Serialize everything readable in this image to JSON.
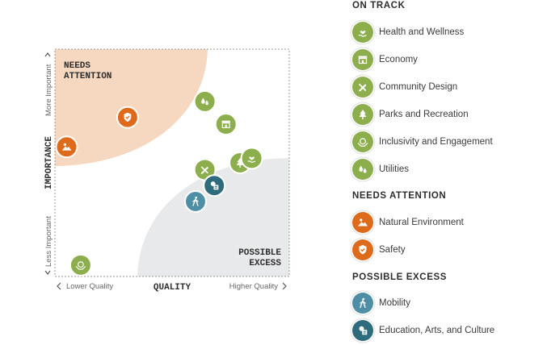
{
  "chart_data": {
    "type": "scatter",
    "title": "",
    "xlabel": "QUALITY",
    "ylabel": "IMPORTANCE",
    "x_low_label": "Lower Quality",
    "x_high_label": "Higher Quality",
    "y_low_label": "Less Important",
    "y_high_label": "More Important",
    "xlim": [
      0,
      100
    ],
    "ylim": [
      0,
      100
    ],
    "grid": false,
    "legend_position": "right",
    "zones": {
      "needs_attention": {
        "label_line1": "NEEDS",
        "label_line2": "ATTENTION",
        "color": "#f6d7bf"
      },
      "possible_excess": {
        "label_line1": "POSSIBLE",
        "label_line2": "EXCESS",
        "color": "#e8e9ea"
      }
    },
    "points": [
      {
        "name": "Safety",
        "x": 31,
        "y": 70,
        "category": "needs_attention",
        "icon": "shield-check-icon"
      },
      {
        "name": "Natural Environment",
        "x": 5,
        "y": 57,
        "category": "needs_attention",
        "icon": "mountain-sun-icon"
      },
      {
        "name": "Utilities",
        "x": 64,
        "y": 77,
        "category": "on_track",
        "icon": "water-flame-icon"
      },
      {
        "name": "Economy",
        "x": 73,
        "y": 67,
        "category": "on_track",
        "icon": "storefront-icon"
      },
      {
        "name": "Community Design",
        "x": 64,
        "y": 47,
        "category": "on_track",
        "icon": "pencil-ruler-icon"
      },
      {
        "name": "Parks and Recreation",
        "x": 79,
        "y": 50,
        "category": "on_track",
        "icon": "tree-icon"
      },
      {
        "name": "Health and Wellness",
        "x": 84,
        "y": 52,
        "category": "on_track",
        "icon": "hand-heart-icon"
      },
      {
        "name": "Inclusivity and Engagement",
        "x": 11,
        "y": 5,
        "category": "on_track",
        "icon": "globe-hands-icon"
      },
      {
        "name": "Education, Arts, and Culture",
        "x": 68,
        "y": 40,
        "category": "possible_excess",
        "icon": "book-palette-icon"
      },
      {
        "name": "Mobility",
        "x": 60,
        "y": 33,
        "category": "possible_excess",
        "icon": "walking-person-icon"
      }
    ]
  },
  "colors": {
    "on_track": "#8dae4c",
    "needs_attention": "#de6b1c",
    "possible_excess": "#4f8fa6",
    "education": "#2e6b7d"
  },
  "legend": {
    "sections": [
      {
        "title": "ON TRACK",
        "category": "on_track",
        "items": [
          {
            "label": "Health and Wellness",
            "icon": "hand-heart-icon"
          },
          {
            "label": "Economy",
            "icon": "storefront-icon"
          },
          {
            "label": "Community Design",
            "icon": "pencil-ruler-icon"
          },
          {
            "label": "Parks and Recreation",
            "icon": "tree-icon"
          },
          {
            "label": "Inclusivity and Engagement",
            "icon": "globe-hands-icon"
          },
          {
            "label": "Utilities",
            "icon": "water-flame-icon"
          }
        ]
      },
      {
        "title": "NEEDS ATTENTION",
        "category": "needs_attention",
        "items": [
          {
            "label": "Natural Environment",
            "icon": "mountain-sun-icon"
          },
          {
            "label": "Safety",
            "icon": "shield-check-icon"
          }
        ]
      },
      {
        "title": "POSSIBLE EXCESS",
        "category": "possible_excess",
        "items": [
          {
            "label": "Mobility",
            "icon": "walking-person-icon"
          },
          {
            "label": "Education, Arts, and Culture",
            "icon": "book-palette-icon"
          }
        ]
      }
    ]
  }
}
